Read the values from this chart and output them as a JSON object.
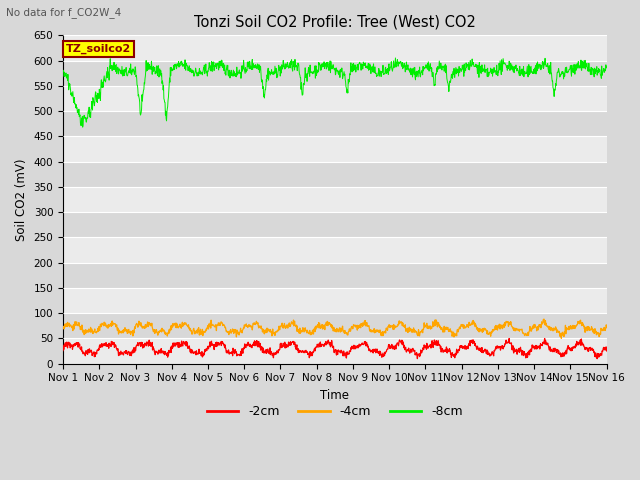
{
  "title": "Tonzi Soil CO2 Profile: Tree (West) CO2",
  "subtitle": "No data for f_CO2W_4",
  "xlabel": "Time",
  "ylabel": "Soil CO2 (mV)",
  "ylim": [
    0,
    650
  ],
  "yticks": [
    0,
    50,
    100,
    150,
    200,
    250,
    300,
    350,
    400,
    450,
    500,
    550,
    600,
    650
  ],
  "legend_label": "TZ_soilco2",
  "legend_color_text": "#8B0000",
  "legend_bg": "#FFFF00",
  "line_colors": {
    "-2cm": "#FF0000",
    "-4cm": "#FFA500",
    "-8cm": "#00EE00"
  },
  "background_color": "#D8D8D8",
  "plot_bg_light": "#EBEBEB",
  "plot_bg_dark": "#D8D8D8",
  "n_days": 15,
  "pts_per_day": 96,
  "seed": 42,
  "x_tick_labels": [
    "Nov 1",
    "Nov 2",
    "Nov 3",
    "Nov 4",
    "Nov 5",
    "Nov 6",
    "Nov 7",
    "Nov 8",
    "Nov 9",
    "Nov 10",
    "Nov 11",
    "Nov 12",
    "Nov 13",
    "Nov 14",
    "Nov 15",
    "Nov 16"
  ],
  "figsize": [
    6.4,
    4.8
  ],
  "dpi": 100
}
